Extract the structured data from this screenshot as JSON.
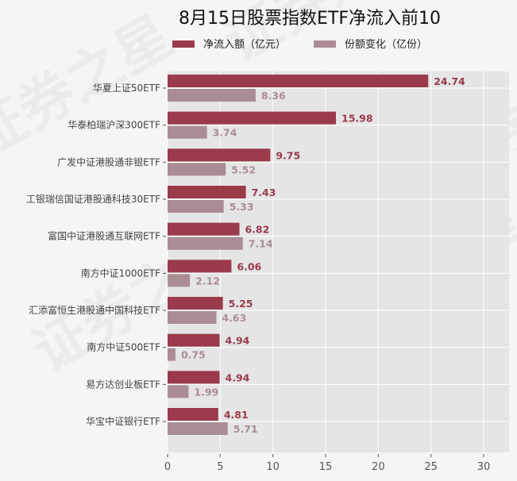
{
  "watermark": "证券之星",
  "chart_data": {
    "type": "bar",
    "orientation": "horizontal",
    "title": "8月15日股票指数ETF净流入前10",
    "categories": [
      "华夏上证50ETF",
      "华泰柏瑞沪深300ETF",
      "广发中证港股通非银ETF",
      "工银瑞信国证港股通科技30ETF",
      "富国中证港股通互联网ETF",
      "南方中证1000ETF",
      "汇添富恒生港股通中国科技ETF",
      "南方中证500ETF",
      "易方达创业板ETF",
      "华宝中证银行ETF"
    ],
    "series": [
      {
        "name": "净流入额（亿元）",
        "color": "#9a3a4b",
        "values": [
          24.74,
          15.98,
          9.75,
          7.43,
          6.82,
          6.06,
          5.25,
          4.94,
          4.94,
          4.81
        ]
      },
      {
        "name": "份额变化（亿份）",
        "color": "#ab8c95",
        "values": [
          8.36,
          3.74,
          5.52,
          5.33,
          7.14,
          2.12,
          4.63,
          0.75,
          1.99,
          5.71
        ]
      }
    ],
    "xlim": [
      0,
      32.5
    ],
    "xticks": [
      0,
      5,
      10,
      15,
      20,
      25,
      30
    ],
    "grid": true,
    "legend": "top",
    "background": "#e5e5e5"
  }
}
